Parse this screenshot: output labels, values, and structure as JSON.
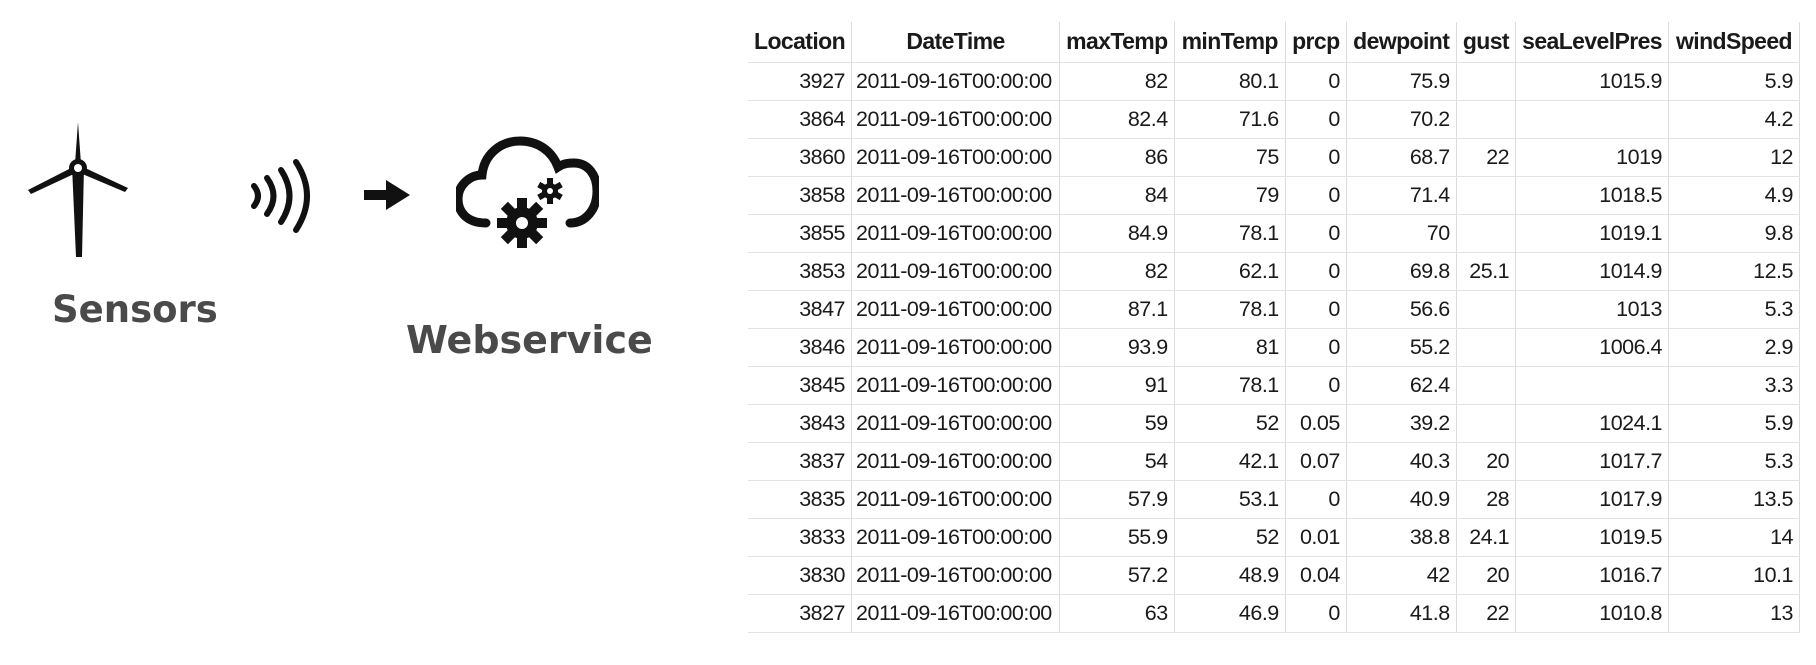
{
  "diagram": {
    "sensors_label": "Sensors",
    "webservice_label": "Webservice",
    "icons": [
      "wind-turbine-icon",
      "wireless-signal-icon",
      "arrow-right-icon",
      "cloud-gears-icon"
    ]
  },
  "table": {
    "headers": [
      "Location",
      "DateTime",
      "maxTemp",
      "minTemp",
      "prcp",
      "dewpoint",
      "gust",
      "seaLevelPres",
      "windSpeed"
    ],
    "rows": [
      [
        "3927",
        "2011-09-16T00:00:00",
        "82",
        "80.1",
        "0",
        "75.9",
        "",
        "1015.9",
        "5.9"
      ],
      [
        "3864",
        "2011-09-16T00:00:00",
        "82.4",
        "71.6",
        "0",
        "70.2",
        "",
        "",
        "4.2"
      ],
      [
        "3860",
        "2011-09-16T00:00:00",
        "86",
        "75",
        "0",
        "68.7",
        "22",
        "1019",
        "12"
      ],
      [
        "3858",
        "2011-09-16T00:00:00",
        "84",
        "79",
        "0",
        "71.4",
        "",
        "1018.5",
        "4.9"
      ],
      [
        "3855",
        "2011-09-16T00:00:00",
        "84.9",
        "78.1",
        "0",
        "70",
        "",
        "1019.1",
        "9.8"
      ],
      [
        "3853",
        "2011-09-16T00:00:00",
        "82",
        "62.1",
        "0",
        "69.8",
        "25.1",
        "1014.9",
        "12.5"
      ],
      [
        "3847",
        "2011-09-16T00:00:00",
        "87.1",
        "78.1",
        "0",
        "56.6",
        "",
        "1013",
        "5.3"
      ],
      [
        "3846",
        "2011-09-16T00:00:00",
        "93.9",
        "81",
        "0",
        "55.2",
        "",
        "1006.4",
        "2.9"
      ],
      [
        "3845",
        "2011-09-16T00:00:00",
        "91",
        "78.1",
        "0",
        "62.4",
        "",
        "",
        "3.3"
      ],
      [
        "3843",
        "2011-09-16T00:00:00",
        "59",
        "52",
        "0.05",
        "39.2",
        "",
        "1024.1",
        "5.9"
      ],
      [
        "3837",
        "2011-09-16T00:00:00",
        "54",
        "42.1",
        "0.07",
        "40.3",
        "20",
        "1017.7",
        "5.3"
      ],
      [
        "3835",
        "2011-09-16T00:00:00",
        "57.9",
        "53.1",
        "0",
        "40.9",
        "28",
        "1017.9",
        "13.5"
      ],
      [
        "3833",
        "2011-09-16T00:00:00",
        "55.9",
        "52",
        "0.01",
        "38.8",
        "24.1",
        "1019.5",
        "14"
      ],
      [
        "3830",
        "2011-09-16T00:00:00",
        "57.2",
        "48.9",
        "0.04",
        "42",
        "20",
        "1016.7",
        "10.1"
      ],
      [
        "3827",
        "2011-09-16T00:00:00",
        "63",
        "46.9",
        "0",
        "41.8",
        "22",
        "1010.8",
        "13"
      ]
    ]
  }
}
